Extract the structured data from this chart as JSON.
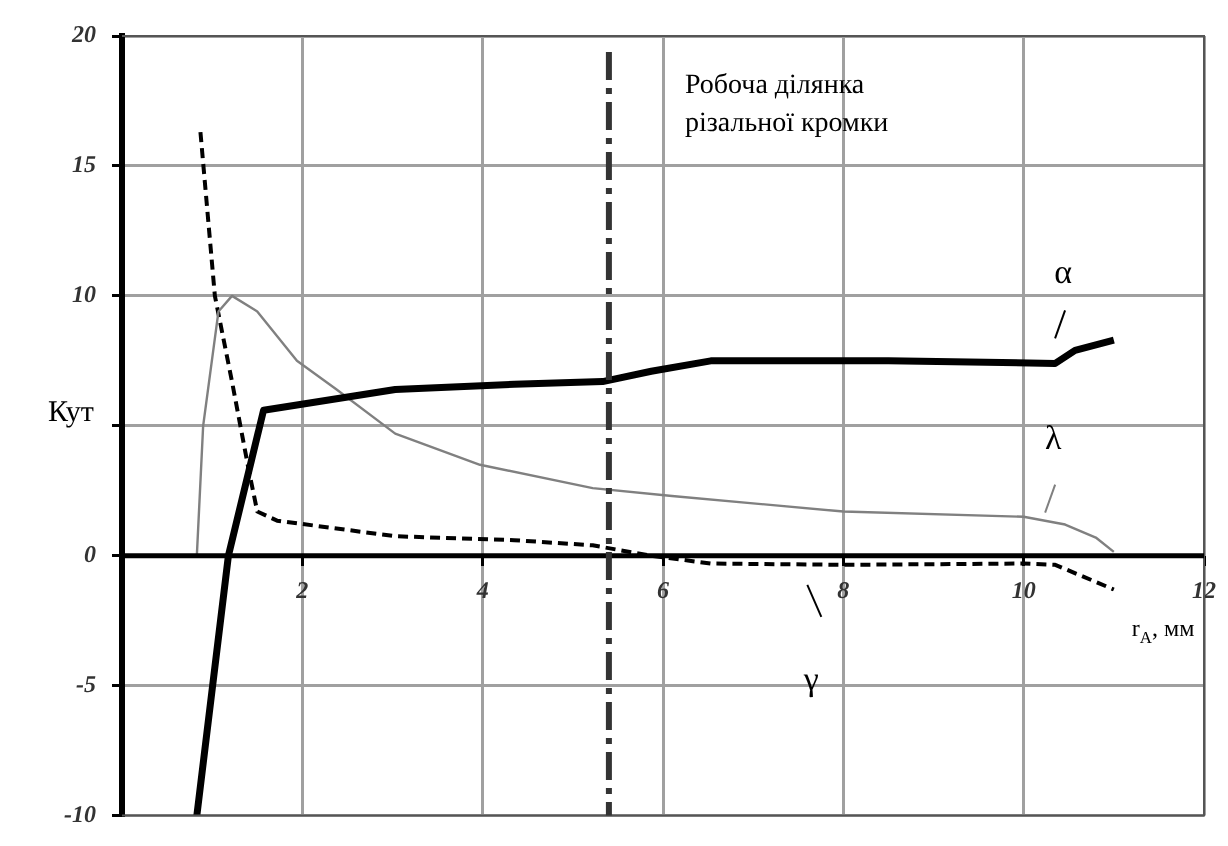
{
  "chart_data": {
    "type": "line",
    "xlabel": "r$_{A}$, мм",
    "ylabel": "Кут",
    "xlim": [
      0,
      12
    ],
    "ylim": [
      -10,
      20
    ],
    "xticks": [
      {
        "value": 0,
        "label": null
      },
      2,
      4,
      6,
      8,
      10,
      12
    ],
    "yticks": [
      -10,
      -5,
      0,
      {
        "value": 5,
        "label": null
      },
      10,
      15,
      20
    ],
    "grid": true,
    "legend": false,
    "marker": "none",
    "ref_lines": [
      {
        "axis": "x",
        "value": 5.4,
        "label": "Робоча ділянка\nрізальної кромки",
        "line_style": "dashed",
        "color": "#333333"
      }
    ],
    "series": [
      {
        "name": "α",
        "color": "#000000",
        "line_style": "solid",
        "x": [
          0.83,
          1.18,
          1.57,
          1.94,
          3.03,
          4.35,
          5.33,
          5.87,
          6.53,
          8.5,
          10.35,
          10.57,
          11.0
        ],
        "values": [
          -10,
          0,
          5.6,
          5.8,
          6.4,
          6.6,
          6.7,
          7.1,
          7.5,
          7.5,
          7.4,
          7.9,
          8.3
        ]
      },
      {
        "name": "λ",
        "color": "#808080",
        "line_style": "solid",
        "x": [
          0.83,
          0.9,
          1.07,
          1.22,
          1.5,
          1.94,
          2.38,
          3.03,
          3.97,
          5.22,
          6.1,
          8.0,
          10.0,
          10.46,
          10.8,
          11.0
        ],
        "values": [
          0,
          5,
          9.4,
          10,
          9.4,
          7.5,
          6.4,
          4.7,
          3.5,
          2.6,
          2.3,
          1.7,
          1.5,
          1.2,
          0.7,
          0.15
        ]
      },
      {
        "name": "γ",
        "color": "#000000",
        "line_style": "dashed",
        "x": [
          0.87,
          1.03,
          1.22,
          1.4,
          1.5,
          1.72,
          3.03,
          4.35,
          5.22,
          5.87,
          6.53,
          8.0,
          10.0,
          10.35,
          11.0
        ],
        "values": [
          16.3,
          10,
          6.7,
          3.4,
          1.7,
          1.35,
          0.75,
          0.6,
          0.4,
          0,
          -0.3,
          -0.35,
          -0.3,
          -0.35,
          -1.3
        ]
      }
    ]
  }
}
